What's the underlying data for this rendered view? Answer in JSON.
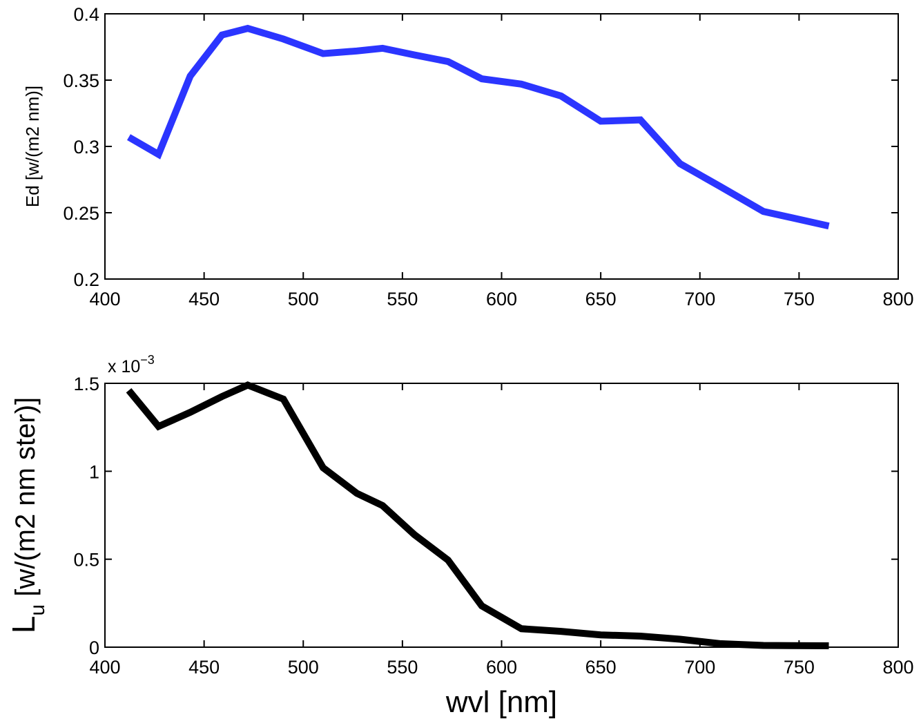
{
  "chart_data": [
    {
      "type": "line",
      "xlabel": "",
      "ylabel": "Ed [w/(m2 nm)]",
      "xlim": [
        400,
        800
      ],
      "ylim": [
        0.2,
        0.4
      ],
      "xticks": [
        400,
        450,
        500,
        550,
        600,
        650,
        700,
        750,
        800
      ],
      "yticks": [
        0.2,
        0.25,
        0.3,
        0.35,
        0.4
      ],
      "xtick_labels": [
        "400",
        "450",
        "500",
        "550",
        "600",
        "650",
        "700",
        "750",
        "800"
      ],
      "ytick_labels": [
        "0.2",
        "0.25",
        "0.3",
        "0.35",
        "0.4"
      ],
      "grid": false,
      "series": [
        {
          "color": "#2b35ff",
          "x": [
            412,
            427,
            443,
            459,
            472,
            490,
            510,
            527,
            540,
            556,
            573,
            590,
            610,
            630,
            650,
            670,
            690,
            710,
            732,
            765
          ],
          "y": [
            0.307,
            0.294,
            0.353,
            0.384,
            0.389,
            0.381,
            0.37,
            0.372,
            0.374,
            0.369,
            0.364,
            0.351,
            0.347,
            0.338,
            0.319,
            0.32,
            0.287,
            0.27,
            0.251,
            0.24
          ]
        }
      ]
    },
    {
      "type": "line",
      "xlabel": "wvl [nm]",
      "ylabel_main": "L",
      "ylabel_sub": "u",
      "ylabel_rest": " [w/(m2 nm ster)]",
      "exponent_base": "x 10",
      "exponent_power": "−3",
      "xlim": [
        400,
        800
      ],
      "ylim": [
        0,
        1.5
      ],
      "xticks": [
        400,
        450,
        500,
        550,
        600,
        650,
        700,
        750,
        800
      ],
      "yticks": [
        0,
        0.5,
        1,
        1.5
      ],
      "xtick_labels": [
        "400",
        "450",
        "500",
        "550",
        "600",
        "650",
        "700",
        "750",
        "800"
      ],
      "ytick_labels": [
        "0",
        "0.5",
        "1",
        "1.5"
      ],
      "grid": false,
      "series": [
        {
          "color": "#000000",
          "x": [
            412,
            427,
            443,
            459,
            472,
            490,
            510,
            527,
            540,
            556,
            573,
            590,
            610,
            630,
            650,
            670,
            690,
            710,
            732,
            765
          ],
          "y": [
            1.46,
            1.255,
            1.335,
            1.425,
            1.49,
            1.41,
            1.02,
            0.875,
            0.805,
            0.64,
            0.495,
            0.235,
            0.105,
            0.09,
            0.07,
            0.063,
            0.045,
            0.02,
            0.01,
            0.008
          ]
        }
      ]
    }
  ]
}
